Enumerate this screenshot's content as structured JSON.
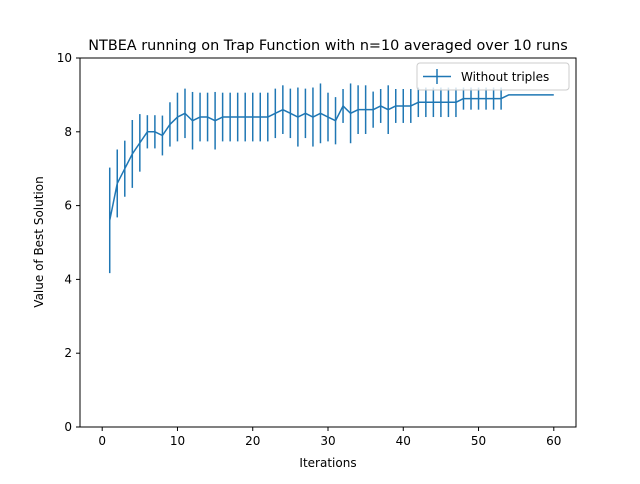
{
  "chart_data": {
    "type": "line",
    "title": "NTBEA running on Trap Function with n=10 averaged over 10 runs",
    "xlabel": "Iterations",
    "ylabel": "Value of Best Solution",
    "xlim": [
      -2.95,
      62.95
    ],
    "ylim": [
      0,
      10
    ],
    "xticks": [
      0,
      10,
      20,
      30,
      40,
      50,
      60
    ],
    "yticks": [
      0,
      2,
      4,
      6,
      8,
      10
    ],
    "grid": false,
    "legend_position": "top-right",
    "series_color": "#1f77b4",
    "series": [
      {
        "name": "Without triples",
        "x": [
          1,
          2,
          3,
          4,
          5,
          6,
          7,
          8,
          9,
          10,
          11,
          12,
          13,
          14,
          15,
          16,
          17,
          18,
          19,
          20,
          21,
          22,
          23,
          24,
          25,
          26,
          27,
          28,
          29,
          30,
          31,
          32,
          33,
          34,
          35,
          36,
          37,
          38,
          39,
          40,
          41,
          42,
          43,
          44,
          45,
          46,
          47,
          48,
          49,
          50,
          51,
          52,
          53,
          54,
          55,
          56,
          57,
          58,
          59,
          60
        ],
        "y": [
          5.6,
          6.6,
          7.0,
          7.4,
          7.7,
          8.0,
          8.0,
          7.9,
          8.2,
          8.4,
          8.5,
          8.3,
          8.4,
          8.4,
          8.3,
          8.4,
          8.4,
          8.4,
          8.4,
          8.4,
          8.4,
          8.4,
          8.5,
          8.6,
          8.5,
          8.4,
          8.5,
          8.4,
          8.5,
          8.4,
          8.3,
          8.7,
          8.5,
          8.6,
          8.6,
          8.6,
          8.7,
          8.6,
          8.7,
          8.7,
          8.7,
          8.8,
          8.8,
          8.8,
          8.8,
          8.8,
          8.8,
          8.9,
          8.9,
          8.9,
          8.9,
          8.9,
          8.9,
          9.0,
          9.0,
          9.0,
          9.0,
          9.0,
          9.0,
          9.0
        ],
        "yerr": [
          1.43,
          0.92,
          0.76,
          0.92,
          0.78,
          0.45,
          0.45,
          0.54,
          0.6,
          0.66,
          0.67,
          0.78,
          0.66,
          0.66,
          0.78,
          0.66,
          0.66,
          0.66,
          0.66,
          0.66,
          0.66,
          0.66,
          0.67,
          0.66,
          0.67,
          0.8,
          0.67,
          0.8,
          0.81,
          0.66,
          0.64,
          0.46,
          0.81,
          0.66,
          0.66,
          0.49,
          0.46,
          0.66,
          0.46,
          0.46,
          0.46,
          0.4,
          0.4,
          0.4,
          0.4,
          0.4,
          0.4,
          0.3,
          0.3,
          0.3,
          0.3,
          0.3,
          0.3,
          0.0,
          0.0,
          0.0,
          0.0,
          0.0,
          0.0,
          0.0
        ]
      }
    ]
  }
}
